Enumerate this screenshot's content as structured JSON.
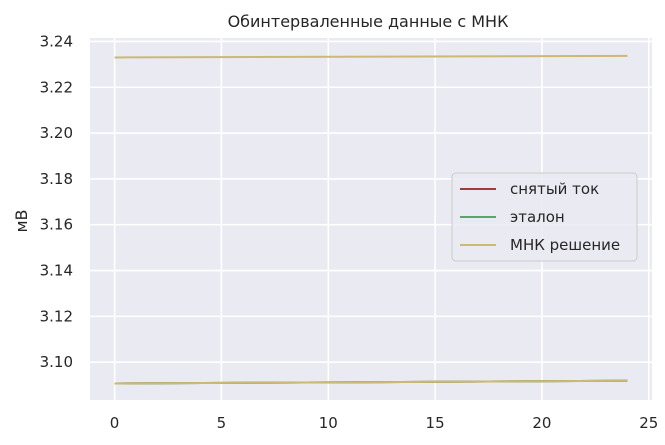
{
  "chart_data": {
    "type": "line",
    "title": "Обинтерваленные данные с МНК",
    "xlabel": "",
    "ylabel": "мВ",
    "xlim": [
      -1.15,
      25.15
    ],
    "ylim": [
      3.0835,
      3.2415
    ],
    "xticks": [
      0,
      5,
      10,
      15,
      20,
      25
    ],
    "xtick_labels": [
      "0",
      "5",
      "10",
      "15",
      "20",
      "25"
    ],
    "yticks": [
      3.1,
      3.12,
      3.14,
      3.16,
      3.18,
      3.2,
      3.22,
      3.24
    ],
    "ytick_labels": [
      "3.10",
      "3.12",
      "3.14",
      "3.16",
      "3.18",
      "3.20",
      "3.22",
      "3.24"
    ],
    "grid": true,
    "legend_position": "center-right",
    "background": "#eaeaf2",
    "series": [
      {
        "name": "снятый ток",
        "color": "#a03c3c",
        "x": [
          0,
          24
        ],
        "values": [
          3.0907,
          3.0919
        ]
      },
      {
        "name": "эталон",
        "color": "#55a868",
        "x": [
          0,
          24
        ],
        "values": [
          3.0907,
          3.0919
        ]
      },
      {
        "name": "МНК решение",
        "color": "#ccb974",
        "segments": [
          {
            "x": [
              0,
              24
            ],
            "values": [
              3.0907,
              3.0919
            ]
          },
          {
            "x": [
              0,
              24
            ],
            "values": [
              3.233,
              3.2337
            ]
          }
        ]
      }
    ]
  }
}
